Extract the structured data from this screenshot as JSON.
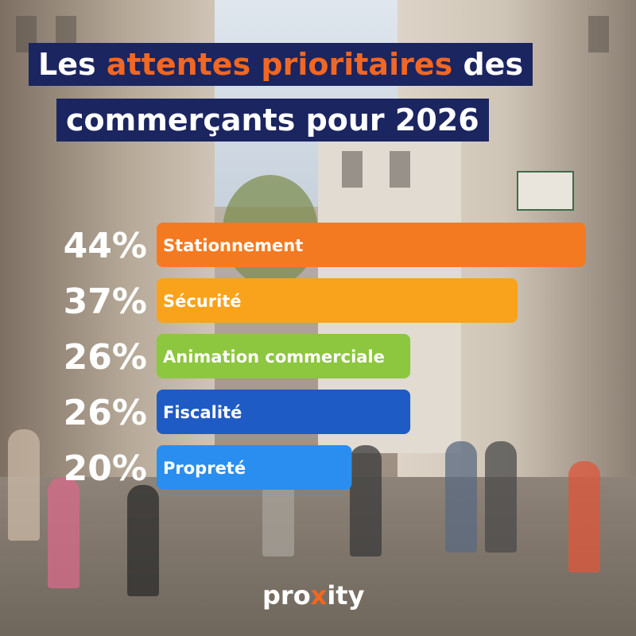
{
  "title": {
    "part1": "Les ",
    "highlight": "attentes prioritaires",
    "part2": " des",
    "line2": "commerçants pour 2026"
  },
  "colors": {
    "title_bg": "#1b2560",
    "title_highlight": "#f26722"
  },
  "chart_data": {
    "type": "bar",
    "orientation": "horizontal",
    "categories": [
      "Stationnement",
      "Sécurité",
      "Animation commerciale",
      "Fiscalité",
      "Propreté"
    ],
    "values": [
      44,
      37,
      26,
      26,
      20
    ],
    "value_labels": [
      "44%",
      "37%",
      "26%",
      "26%",
      "20%"
    ],
    "bar_colors": [
      "#f47a21",
      "#f9a21b",
      "#8dc63f",
      "#1f5bc4",
      "#2a8ef0"
    ],
    "unit": "%",
    "xlim": [
      0,
      44
    ],
    "grid": false,
    "legend": "none"
  },
  "brand": {
    "logo_pre": "pro",
    "logo_x": "x",
    "logo_post": "ity"
  }
}
